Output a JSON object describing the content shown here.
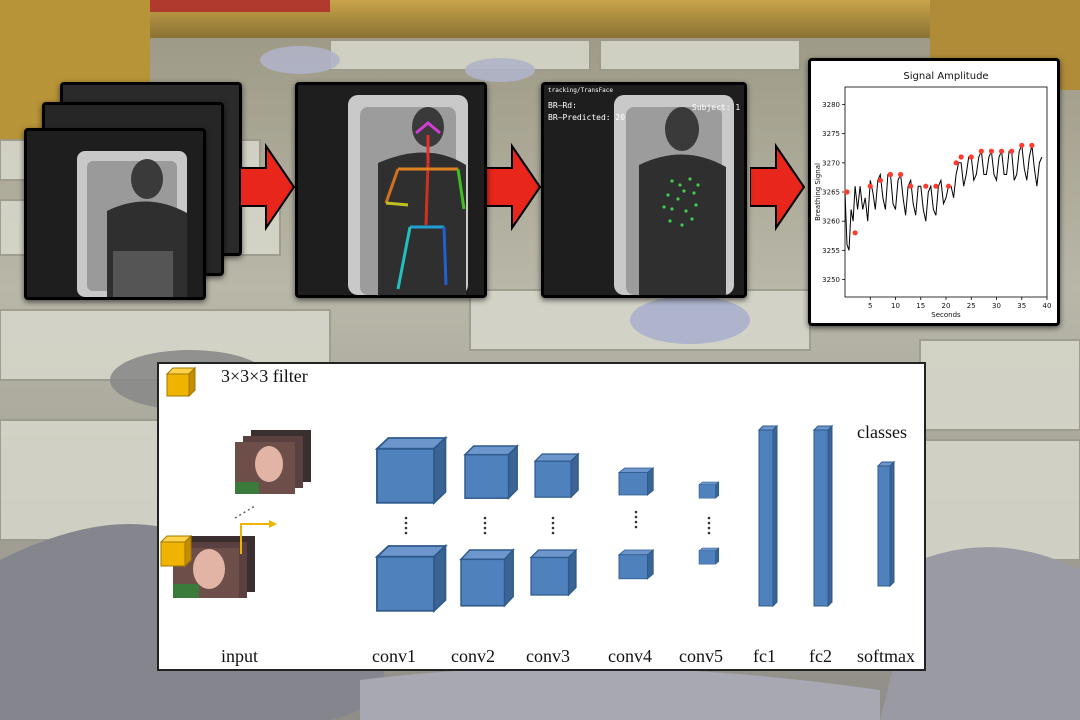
{
  "panels": {
    "tracking_label": "tracking/TransFace",
    "br_label": "BR–Rd:",
    "br_predicted_label": "BR–Predicted: 20",
    "subject_label": "Subject: 1"
  },
  "colors": {
    "arrow": "#e8261c",
    "block": "#4f81bd",
    "block_dark": "#3a6493",
    "filter": "#f0b400",
    "peak": "#ff3b30",
    "line": "#000000"
  },
  "cnn": {
    "filter_label": "3×3×3 filter",
    "classes_label": "classes",
    "layers": [
      "input",
      "conv1",
      "conv2",
      "conv3",
      "conv4",
      "conv5",
      "fc1",
      "fc2",
      "softmax"
    ]
  },
  "chart_data": {
    "type": "line",
    "title": "Signal Amplitude",
    "xlabel": "Seconds",
    "ylabel": "Breathing Signal",
    "xlim": [
      0,
      40
    ],
    "ylim": [
      3247,
      3283
    ],
    "xticks": [
      5,
      10,
      15,
      20,
      25,
      30,
      35,
      40
    ],
    "yticks": [
      3250,
      3255,
      3260,
      3265,
      3270,
      3275,
      3280
    ],
    "series": [
      {
        "x": [
          0,
          0.4,
          0.8,
          1.2,
          1.6,
          2,
          2.5,
          3,
          3.5,
          4,
          4.5,
          5,
          5.5,
          6,
          6.5,
          7,
          7.5,
          8,
          8.5,
          9,
          9.5,
          10,
          10.5,
          11,
          11.5,
          12,
          12.5,
          13,
          13.5,
          14,
          14.5,
          15,
          15.5,
          16,
          16.5,
          17,
          17.5,
          18,
          18.5,
          19,
          19.5,
          20,
          20.5,
          21,
          21.5,
          22,
          22.5,
          23,
          23.5,
          24,
          24.5,
          25,
          25.5,
          26,
          26.5,
          27,
          27.5,
          28,
          28.5,
          29,
          29.5,
          30,
          30.5,
          31,
          31.5,
          32,
          32.5,
          33,
          33.5,
          34,
          34.5,
          35,
          35.5,
          36,
          36.5,
          37,
          37.5,
          38,
          38.5,
          39
        ],
        "y": [
          3265,
          3256,
          3255,
          3262,
          3260,
          3266,
          3262,
          3266,
          3262,
          3264,
          3260,
          3267,
          3265,
          3262,
          3267,
          3268,
          3264,
          3262,
          3268,
          3268,
          3263,
          3262,
          3267,
          3268,
          3264,
          3261,
          3266,
          3267,
          3263,
          3261,
          3266,
          3266,
          3262,
          3260,
          3265,
          3266,
          3262,
          3261,
          3266,
          3267,
          3263,
          3264,
          3266,
          3266,
          3264,
          3268,
          3270,
          3270,
          3266,
          3268,
          3271,
          3271,
          3267,
          3268,
          3271,
          3272,
          3268,
          3268,
          3271,
          3272,
          3268,
          3267,
          3271,
          3272,
          3268,
          3268,
          3272,
          3272,
          3267,
          3268,
          3272,
          3273,
          3269,
          3267,
          3271,
          3273,
          3269,
          3266,
          3270,
          3271
        ]
      }
    ],
    "peaks": {
      "x": [
        0.4,
        2,
        5,
        7,
        9,
        11,
        13,
        16,
        18,
        20.5,
        22,
        23,
        25,
        27,
        29,
        31,
        33,
        35,
        37
      ],
      "y": [
        3265,
        3258,
        3266,
        3267,
        3268,
        3268,
        3266,
        3266,
        3266,
        3266,
        3270,
        3271,
        3271,
        3272,
        3272,
        3272,
        3272,
        3273,
        3273
      ]
    },
    "grid": false
  }
}
